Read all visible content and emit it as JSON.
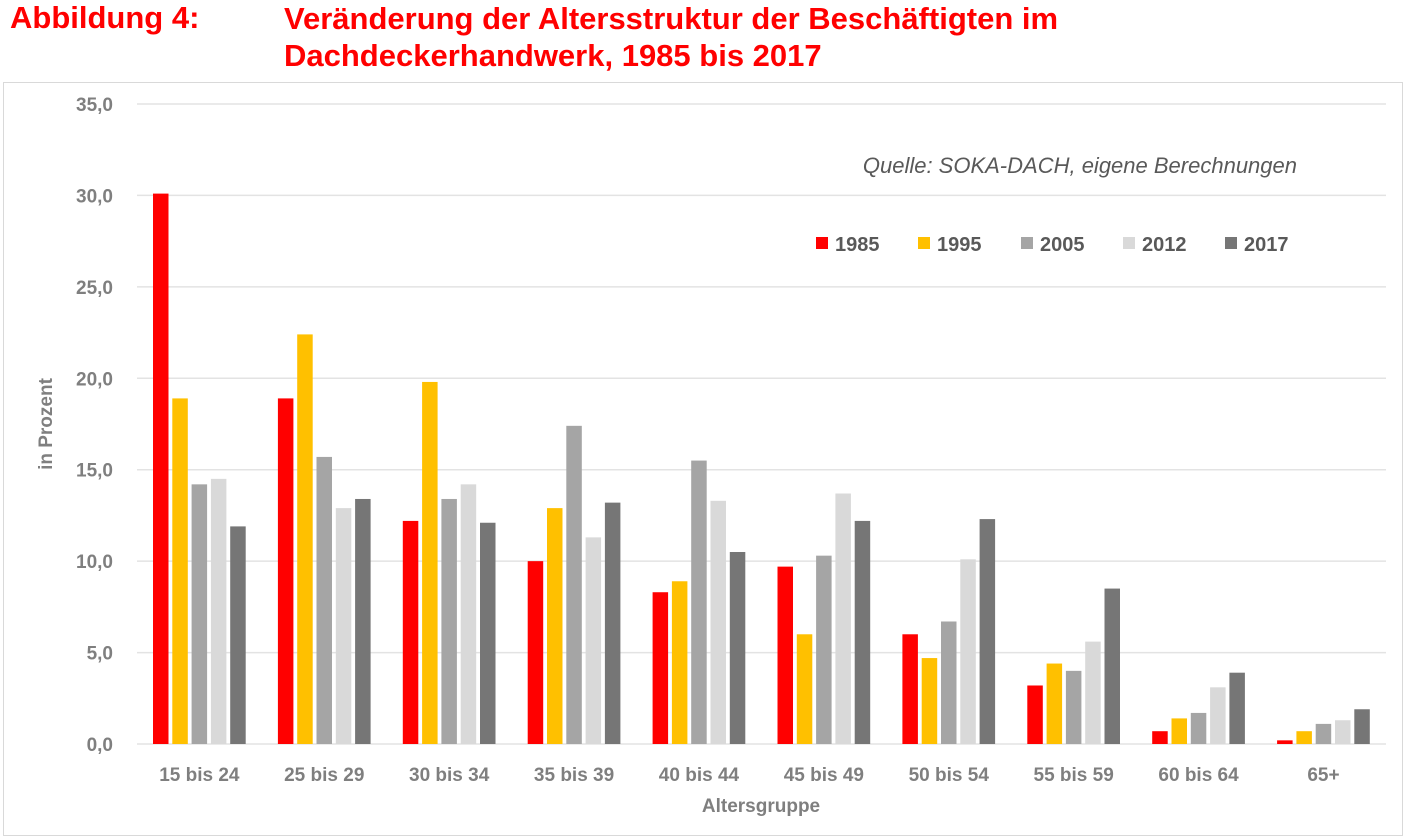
{
  "header": {
    "label": "Abbildung 4:",
    "title_line1": "Veränderung der Altersstruktur der Beschäftigten im",
    "title_line2": "Dachdeckerhandwerk, 1985 bis 2017"
  },
  "source_note": "Quelle: SOKA-DACH, eigene Berechnungen",
  "chart_data": {
    "type": "bar",
    "title": "",
    "xlabel": "Altersgruppe",
    "ylabel": "in Prozent",
    "ylim": [
      0,
      35
    ],
    "yticks": [
      "0,0",
      "5,0",
      "10,0",
      "15,0",
      "20,0",
      "25,0",
      "30,0",
      "35,0"
    ],
    "ytick_values": [
      0,
      5,
      10,
      15,
      20,
      25,
      30,
      35
    ],
    "grid": true,
    "legend_position": "top-right",
    "categories": [
      "15 bis 24",
      "25 bis 29",
      "30 bis 34",
      "35 bis 39",
      "40 bis 44",
      "45 bis 49",
      "50 bis 54",
      "55 bis 59",
      "60 bis 64",
      "65+"
    ],
    "series": [
      {
        "name": "1985",
        "color": "#ff0000",
        "values": [
          30.1,
          18.9,
          12.2,
          10.0,
          8.3,
          9.7,
          6.0,
          3.2,
          0.7,
          0.2
        ]
      },
      {
        "name": "1995",
        "color": "#ffc000",
        "values": [
          18.9,
          22.4,
          19.8,
          12.9,
          8.9,
          6.0,
          4.7,
          4.4,
          1.4,
          0.7
        ]
      },
      {
        "name": "2005",
        "color": "#a5a5a5",
        "values": [
          14.2,
          15.7,
          13.4,
          17.4,
          15.5,
          10.3,
          6.7,
          4.0,
          1.7,
          1.1
        ]
      },
      {
        "name": "2012",
        "color": "#d9d9d9",
        "values": [
          14.5,
          12.9,
          14.2,
          11.3,
          13.3,
          13.7,
          10.1,
          5.6,
          3.1,
          1.3
        ]
      },
      {
        "name": "2017",
        "color": "#767676",
        "values": [
          11.9,
          13.4,
          12.1,
          13.2,
          10.5,
          12.2,
          12.3,
          8.5,
          3.9,
          1.9
        ]
      }
    ]
  }
}
